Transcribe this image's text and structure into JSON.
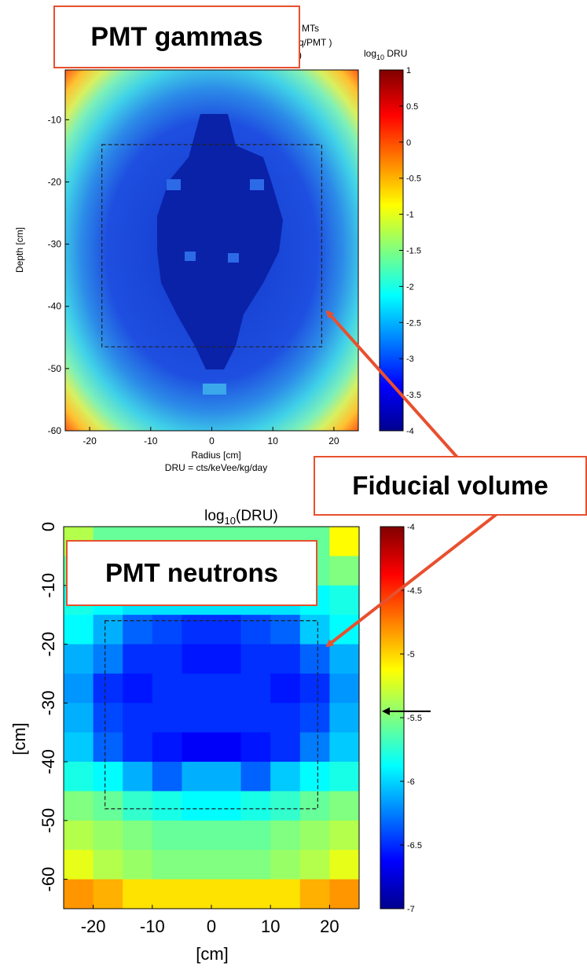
{
  "chart_data": [
    {
      "type": "heatmap",
      "title_fragments": [
        "MTs",
        "q/PMT )",
        ")"
      ],
      "colorbar_label": "log10 DRU",
      "colorbar_label_main": "log",
      "colorbar_label_sub": "10",
      "colorbar_label_tail": " DRU",
      "xlabel": "Radius [cm]",
      "xlabel2": "DRU = cts/keVee/kg/day",
      "ylabel": "Depth [cm]",
      "xlim": [
        -24,
        24
      ],
      "ylim": [
        -60,
        -2
      ],
      "xticks": [
        "-20",
        "-10",
        "0",
        "10",
        "20"
      ],
      "xtick_values": [
        -20,
        -10,
        0,
        10,
        20
      ],
      "yticks": [
        "-10",
        "-20",
        "-30",
        "-40",
        "-50",
        "-60"
      ],
      "ytick_values": [
        -10,
        -20,
        -30,
        -40,
        -50,
        -60
      ],
      "clim": [
        -4,
        1
      ],
      "cticks": [
        "1",
        "0.5",
        "0",
        "-0.5",
        "-1",
        "-1.5",
        "-2",
        "-2.5",
        "-3",
        "-3.5",
        "-4"
      ],
      "ctick_values": [
        1,
        0.5,
        0,
        -0.5,
        -1,
        -1.5,
        -2,
        -2.5,
        -3,
        -3.5,
        -4
      ],
      "fiducial_box": {
        "r_min": -18,
        "r_max": 18,
        "depth_top": -14,
        "depth_bottom": -46.5
      },
      "grid": false
    },
    {
      "type": "heatmap",
      "title": "log10(DRU)",
      "title_main": "log",
      "title_sub": "10",
      "title_tail": "(DRU)",
      "xlabel": "[cm]",
      "ylabel": "[cm]",
      "x_edges": [
        -25,
        -20,
        -15,
        -10,
        -5,
        0,
        5,
        10,
        15,
        20,
        25
      ],
      "y_edges": [
        0,
        -5,
        -10,
        -15,
        -20,
        -25,
        -30,
        -35,
        -40,
        -45,
        -50,
        -55,
        -60,
        -65
      ],
      "xticks": [
        "-20",
        "-10",
        "0",
        "10",
        "20"
      ],
      "xtick_values": [
        -20,
        -10,
        0,
        10,
        20
      ],
      "yticks": [
        "0",
        "-10",
        "-20",
        "-30",
        "-40",
        "-50",
        "-60"
      ],
      "ytick_values": [
        0,
        -10,
        -20,
        -30,
        -40,
        -50,
        -60
      ],
      "clim": [
        -7,
        -4
      ],
      "cticks": [
        "-4",
        "-4.5",
        "-5",
        "-5.5",
        "-6",
        "-6.5",
        "-7"
      ],
      "ctick_values": [
        -4,
        -4.5,
        -5,
        -5.5,
        -6,
        -6.5,
        -7
      ],
      "arrow_marker_value": -5.45,
      "fiducial_box": {
        "x_min": -18,
        "x_max": 18,
        "depth_top": -16,
        "depth_bottom": -48
      },
      "values": [
        [
          -5.3,
          -5.6,
          -5.6,
          -5.6,
          -5.6,
          -5.6,
          -5.6,
          -5.6,
          -5.6,
          -5.0
        ],
        [
          -5.6,
          -5.6,
          -6.0,
          -6.0,
          -6.0,
          -6.0,
          -6.0,
          -6.0,
          -5.6,
          -5.5
        ],
        [
          -5.9,
          -6.0,
          -6.1,
          -6.1,
          -6.1,
          -6.1,
          -6.1,
          -6.1,
          -6.0,
          -5.9
        ],
        [
          -6.0,
          -6.3,
          -6.6,
          -6.7,
          -6.8,
          -6.8,
          -6.7,
          -6.6,
          -6.2,
          -6.0
        ],
        [
          -6.3,
          -6.5,
          -6.8,
          -6.8,
          -6.9,
          -6.9,
          -6.8,
          -6.8,
          -6.6,
          -6.3
        ],
        [
          -6.4,
          -6.8,
          -6.9,
          -6.8,
          -6.8,
          -6.8,
          -6.8,
          -6.9,
          -6.8,
          -6.4
        ],
        [
          -6.3,
          -6.7,
          -6.8,
          -6.8,
          -6.8,
          -6.8,
          -6.8,
          -6.8,
          -6.7,
          -6.3
        ],
        [
          -6.2,
          -6.6,
          -6.8,
          -6.9,
          -7.0,
          -7.0,
          -6.9,
          -6.8,
          -6.5,
          -6.2
        ],
        [
          -5.9,
          -6.0,
          -6.3,
          -6.6,
          -6.3,
          -6.3,
          -6.6,
          -6.2,
          -6.0,
          -5.9
        ],
        [
          -5.5,
          -5.6,
          -5.8,
          -5.9,
          -6.0,
          -6.0,
          -5.9,
          -5.8,
          -5.6,
          -5.5
        ],
        [
          -5.3,
          -5.4,
          -5.5,
          -5.6,
          -5.6,
          -5.6,
          -5.6,
          -5.5,
          -5.4,
          -5.3
        ],
        [
          -5.1,
          -5.3,
          -5.4,
          -5.5,
          -5.5,
          -5.5,
          -5.5,
          -5.4,
          -5.3,
          -5.1
        ],
        [
          -4.6,
          -4.7,
          -4.9,
          -4.9,
          -4.9,
          -4.9,
          -4.9,
          -4.9,
          -4.7,
          -4.6
        ]
      ]
    }
  ],
  "callouts": {
    "top_label": "PMT gammas",
    "middle_label": "Fiducial volume",
    "bottom_label": "PMT neutrons"
  },
  "colors": {
    "callout_border": "#e8502e",
    "arrow": "#e8502e"
  }
}
